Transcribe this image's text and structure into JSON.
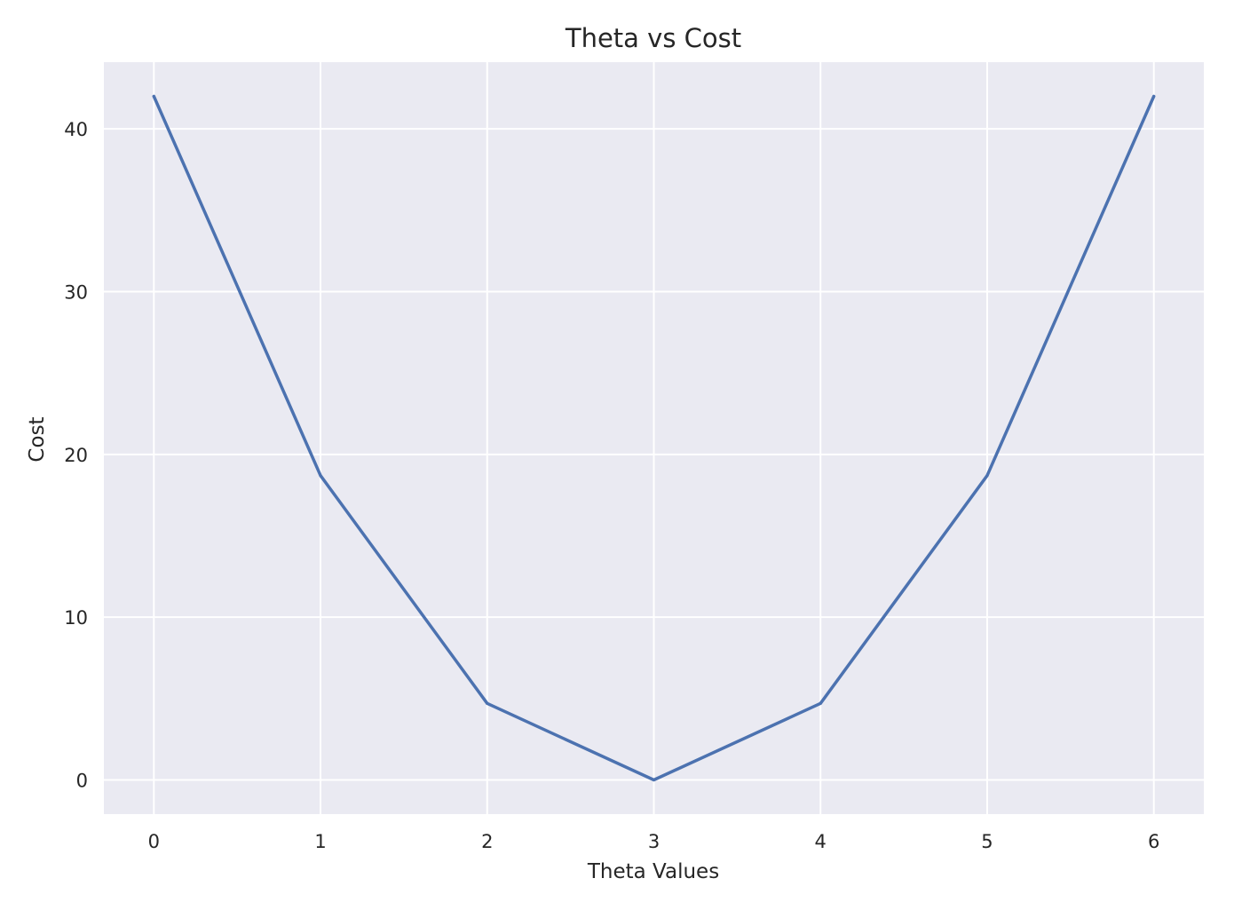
{
  "chart_data": {
    "type": "line",
    "title": "Theta vs Cost",
    "xlabel": "Theta Values",
    "ylabel": "Cost",
    "x": [
      0,
      1,
      2,
      3,
      4,
      5,
      6
    ],
    "series": [
      {
        "values": [
          42.0,
          18.7,
          4.7,
          0.0,
          4.7,
          18.7,
          42.0
        ]
      }
    ],
    "xlim": [
      -0.3,
      6.3
    ],
    "ylim": [
      -2.1,
      44.1
    ],
    "xticks": [
      0,
      1,
      2,
      3,
      4,
      5,
      6
    ],
    "xtick_labels": [
      "0",
      "1",
      "2",
      "3",
      "4",
      "5",
      "6"
    ],
    "yticks": [
      0,
      10,
      20,
      30,
      40
    ],
    "ytick_labels": [
      "0",
      "10",
      "20",
      "30",
      "40"
    ],
    "grid": true,
    "legend": "none",
    "colors": {
      "background": "#eaeaf2",
      "grid": "#ffffff",
      "line": "#4c72b0",
      "text": "#262626"
    }
  }
}
